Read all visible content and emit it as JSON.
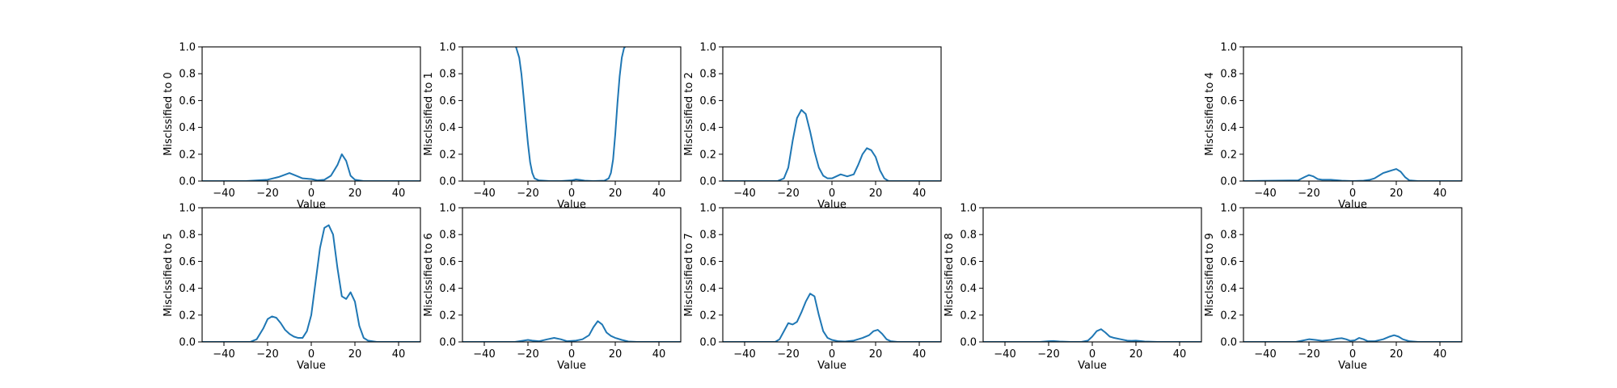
{
  "chart_data": [
    {
      "type": "line",
      "ylabel": "Misclssified to 0",
      "xlabel": "Value",
      "xlim": [
        -50,
        50
      ],
      "ylim": [
        0,
        1
      ],
      "xticks": [
        -40,
        -20,
        0,
        20,
        40
      ],
      "yticks": [
        0,
        0.2,
        0.4,
        0.6,
        0.8,
        1.0
      ],
      "series": [
        {
          "color": "#1f77b4",
          "x": [
            -50,
            -30,
            -20,
            -15,
            -10,
            -7,
            -4,
            0,
            3,
            6,
            9,
            12,
            14,
            16,
            18,
            20,
            24,
            30,
            40,
            50
          ],
          "y": [
            0,
            0,
            0.01,
            0.03,
            0.06,
            0.04,
            0.02,
            0.015,
            0.005,
            0.01,
            0.04,
            0.12,
            0.2,
            0.15,
            0.04,
            0.01,
            0,
            0,
            0,
            0
          ]
        }
      ]
    },
    {
      "type": "line",
      "ylabel": "Misclssified to 1",
      "xlabel": "Value",
      "xlim": [
        -50,
        50
      ],
      "ylim": [
        0,
        1
      ],
      "xticks": [
        -40,
        -20,
        0,
        20,
        40
      ],
      "yticks": [
        0,
        0.2,
        0.4,
        0.6,
        0.8,
        1.0
      ],
      "series": [
        {
          "color": "#1f77b4",
          "x": [
            -25.5,
            -24,
            -23,
            -22,
            -21,
            -20,
            -19,
            -18,
            -17,
            -15,
            -10,
            -5,
            0,
            2,
            4,
            6,
            10,
            15,
            17,
            18,
            19,
            20,
            21,
            22,
            23,
            24,
            24.5
          ],
          "y": [
            1.0,
            0.92,
            0.8,
            0.63,
            0.45,
            0.28,
            0.14,
            0.06,
            0.02,
            0.005,
            0,
            0,
            0.005,
            0.012,
            0.008,
            0.003,
            0,
            0.003,
            0.02,
            0.06,
            0.16,
            0.35,
            0.58,
            0.78,
            0.92,
            0.99,
            1.0
          ]
        }
      ]
    },
    {
      "type": "line",
      "ylabel": "Misclssified to 2",
      "xlabel": "Value",
      "xlim": [
        -50,
        50
      ],
      "ylim": [
        0,
        1
      ],
      "xticks": [
        -40,
        -20,
        0,
        20,
        40
      ],
      "yticks": [
        0,
        0.2,
        0.4,
        0.6,
        0.8,
        1.0
      ],
      "series": [
        {
          "color": "#1f77b4",
          "x": [
            -50,
            -25,
            -22,
            -20,
            -18,
            -16,
            -14,
            -12,
            -10,
            -8,
            -6,
            -4,
            -2,
            0,
            2,
            4,
            7,
            10,
            12,
            14,
            16,
            18,
            20,
            22,
            24,
            26,
            30,
            50
          ],
          "y": [
            0,
            0,
            0.02,
            0.1,
            0.3,
            0.47,
            0.53,
            0.5,
            0.37,
            0.22,
            0.1,
            0.04,
            0.02,
            0.02,
            0.035,
            0.05,
            0.035,
            0.05,
            0.12,
            0.2,
            0.245,
            0.23,
            0.18,
            0.08,
            0.02,
            0,
            0,
            0
          ]
        }
      ]
    },
    null,
    {
      "type": "line",
      "ylabel": "Misclssified to 4",
      "xlabel": "Value",
      "xlim": [
        -50,
        50
      ],
      "ylim": [
        0,
        1
      ],
      "xticks": [
        -40,
        -20,
        0,
        20,
        40
      ],
      "yticks": [
        0,
        0.2,
        0.4,
        0.6,
        0.8,
        1.0
      ],
      "series": [
        {
          "color": "#1f77b4",
          "x": [
            -50,
            -25,
            -22,
            -20,
            -18,
            -16,
            -14,
            -10,
            -5,
            0,
            5,
            8,
            10,
            12,
            14,
            16,
            18,
            20,
            22,
            24,
            26,
            30,
            50
          ],
          "y": [
            0,
            0.005,
            0.03,
            0.045,
            0.035,
            0.015,
            0.01,
            0.01,
            0.003,
            0,
            0.003,
            0.01,
            0.02,
            0.04,
            0.06,
            0.07,
            0.08,
            0.09,
            0.07,
            0.03,
            0.005,
            0,
            0
          ]
        }
      ]
    },
    {
      "type": "line",
      "ylabel": "Misclssified to 5",
      "xlabel": "Value",
      "xlim": [
        -50,
        50
      ],
      "ylim": [
        0,
        1
      ],
      "xticks": [
        -40,
        -20,
        0,
        20,
        40
      ],
      "yticks": [
        0,
        0.2,
        0.4,
        0.6,
        0.8,
        1.0
      ],
      "series": [
        {
          "color": "#1f77b4",
          "x": [
            -50,
            -28,
            -25,
            -22,
            -20,
            -18,
            -16,
            -14,
            -12,
            -10,
            -8,
            -6,
            -4,
            -2,
            0,
            2,
            4,
            6,
            8,
            10,
            12,
            14,
            16,
            18,
            20,
            22,
            24,
            26,
            30,
            50
          ],
          "y": [
            0,
            0,
            0.02,
            0.1,
            0.17,
            0.19,
            0.18,
            0.14,
            0.09,
            0.06,
            0.04,
            0.03,
            0.03,
            0.08,
            0.2,
            0.45,
            0.7,
            0.85,
            0.87,
            0.8,
            0.55,
            0.34,
            0.32,
            0.37,
            0.3,
            0.12,
            0.03,
            0.01,
            0,
            0
          ]
        }
      ]
    },
    {
      "type": "line",
      "ylabel": "Misclssified to 6",
      "xlabel": "Value",
      "xlim": [
        -50,
        50
      ],
      "ylim": [
        0,
        1
      ],
      "xticks": [
        -40,
        -20,
        0,
        20,
        40
      ],
      "yticks": [
        0,
        0.2,
        0.4,
        0.6,
        0.8,
        1.0
      ],
      "series": [
        {
          "color": "#1f77b4",
          "x": [
            -50,
            -26,
            -22,
            -20,
            -18,
            -15,
            -11,
            -8,
            -5,
            -2,
            2,
            5,
            8,
            10,
            12,
            14,
            16,
            18,
            20,
            23,
            26,
            30,
            50
          ],
          "y": [
            0,
            0,
            0.01,
            0.015,
            0.01,
            0.005,
            0.02,
            0.03,
            0.02,
            0.005,
            0.01,
            0.02,
            0.05,
            0.11,
            0.155,
            0.13,
            0.07,
            0.045,
            0.03,
            0.015,
            0.003,
            0,
            0
          ]
        }
      ]
    },
    {
      "type": "line",
      "ylabel": "Misclssified to 7",
      "xlabel": "Value",
      "xlim": [
        -50,
        50
      ],
      "ylim": [
        0,
        1
      ],
      "xticks": [
        -40,
        -20,
        0,
        20,
        40
      ],
      "yticks": [
        0,
        0.2,
        0.4,
        0.6,
        0.8,
        1.0
      ],
      "series": [
        {
          "color": "#1f77b4",
          "x": [
            -50,
            -26,
            -24,
            -22,
            -20,
            -18,
            -16,
            -14,
            -12,
            -10,
            -8,
            -6,
            -4,
            -2,
            0,
            3,
            6,
            10,
            14,
            17,
            19,
            21,
            23,
            25,
            27,
            30,
            50
          ],
          "y": [
            0,
            0,
            0.02,
            0.08,
            0.14,
            0.13,
            0.15,
            0.22,
            0.3,
            0.36,
            0.34,
            0.2,
            0.08,
            0.03,
            0.015,
            0.005,
            0.003,
            0.01,
            0.03,
            0.05,
            0.08,
            0.09,
            0.06,
            0.02,
            0.005,
            0,
            0
          ]
        }
      ]
    },
    {
      "type": "line",
      "ylabel": "Misclssified to 8",
      "xlabel": "Value",
      "xlim": [
        -50,
        50
      ],
      "ylim": [
        0,
        1
      ],
      "xticks": [
        -40,
        -20,
        0,
        20,
        40
      ],
      "yticks": [
        0,
        0.2,
        0.4,
        0.6,
        0.8,
        1.0
      ],
      "series": [
        {
          "color": "#1f77b4",
          "x": [
            -50,
            -24,
            -20,
            -18,
            -15,
            -10,
            -5,
            -2,
            0,
            2,
            4,
            6,
            8,
            10,
            13,
            16,
            18,
            20,
            24,
            30,
            50
          ],
          "y": [
            0,
            0,
            0.005,
            0.007,
            0.003,
            0,
            0,
            0.01,
            0.04,
            0.08,
            0.095,
            0.07,
            0.04,
            0.03,
            0.02,
            0.01,
            0.008,
            0.01,
            0.003,
            0,
            0
          ]
        }
      ]
    },
    {
      "type": "line",
      "ylabel": "Misclssified to 9",
      "xlabel": "Value",
      "xlim": [
        -50,
        50
      ],
      "ylim": [
        0,
        1
      ],
      "xticks": [
        -40,
        -20,
        0,
        20,
        40
      ],
      "yticks": [
        0,
        0.2,
        0.4,
        0.6,
        0.8,
        1.0
      ],
      "series": [
        {
          "color": "#1f77b4",
          "x": [
            -50,
            -26,
            -23,
            -20,
            -17,
            -14,
            -10,
            -7,
            -5,
            -3,
            -1,
            1,
            3,
            5,
            7,
            10,
            14,
            17,
            19,
            21,
            23,
            26,
            30,
            50
          ],
          "y": [
            0,
            0,
            0.01,
            0.02,
            0.015,
            0.008,
            0.015,
            0.025,
            0.028,
            0.02,
            0.008,
            0.012,
            0.03,
            0.02,
            0.005,
            0.005,
            0.02,
            0.04,
            0.05,
            0.04,
            0.02,
            0.005,
            0,
            0
          ]
        }
      ]
    }
  ]
}
